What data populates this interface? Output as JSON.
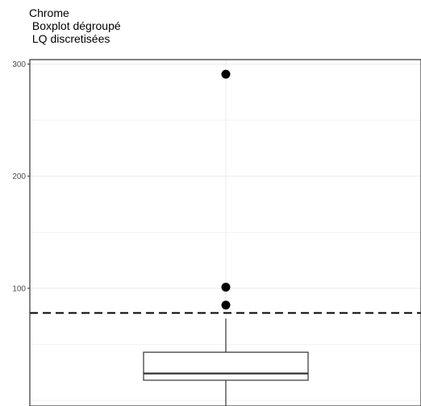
{
  "chart_data": {
    "type": "box",
    "title_lines": [
      "Chrome",
      " Boxplot dégroupé",
      " LQ discretisées"
    ],
    "xlabel": "",
    "ylabel": "",
    "ylim": [
      -5,
      304
    ],
    "y_ticks": [
      100,
      200,
      300
    ],
    "y_tick_labels": [
      "100",
      "200",
      "300"
    ],
    "grid": true,
    "box": {
      "q1": 18,
      "median": 24,
      "q3": 43,
      "whisker_high": 73,
      "whisker_low": -5,
      "outliers": [
        85,
        101,
        291
      ]
    },
    "reference_line": {
      "value": 78,
      "style": "dashed"
    },
    "colors": {
      "box": "#333333",
      "grid": "#ebebeb",
      "reference": "#000000",
      "outlier": "#000000"
    }
  }
}
